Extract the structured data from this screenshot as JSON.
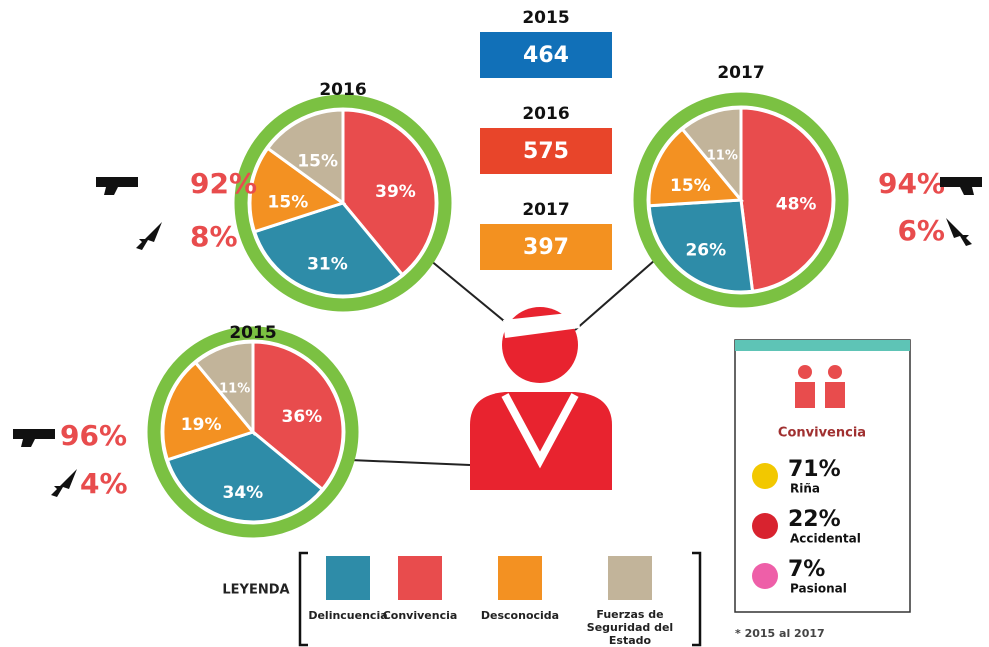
{
  "chart_data": [
    {
      "type": "pie",
      "title": "2016",
      "values": [
        39,
        31,
        15,
        15
      ],
      "value_labels": [
        "39%",
        "31%",
        "15%",
        "15%"
      ],
      "colors": [
        "#e84c4d",
        "#2e8ca8",
        "#f39122",
        "#c2b49a"
      ],
      "weapons": {
        "values": [
          92,
          8
        ],
        "value_labels": [
          "92%",
          "8%"
        ]
      }
    },
    {
      "type": "pie",
      "title": "2017",
      "values": [
        48,
        26,
        15,
        11
      ],
      "value_labels": [
        "48%",
        "26%",
        "15%",
        "11%"
      ],
      "colors": [
        "#e84c4d",
        "#2e8ca8",
        "#f39122",
        "#c2b49a"
      ],
      "weapons": {
        "values": [
          94,
          6
        ],
        "value_labels": [
          "94%",
          "6%"
        ]
      }
    },
    {
      "type": "pie",
      "title": "2015",
      "values": [
        36,
        34,
        19,
        11
      ],
      "value_labels": [
        "36%",
        "34%",
        "19%",
        "11%"
      ],
      "colors": [
        "#e84c4d",
        "#2e8ca8",
        "#f39122",
        "#c2b49a"
      ],
      "weapons": {
        "values": [
          96,
          4
        ],
        "value_labels": [
          "96%",
          "4%"
        ]
      }
    }
  ],
  "totals": [
    {
      "year": "2015",
      "value": 464,
      "color": "#1170b8"
    },
    {
      "year": "2016",
      "value": 575,
      "color": "#e8452a"
    },
    {
      "year": "2017",
      "value": 397,
      "color": "#f39120"
    }
  ],
  "legend": {
    "title": "LEYENDA",
    "items": [
      {
        "name": "Delincuencia",
        "color": "#2e8ca8"
      },
      {
        "name": "Convivencia",
        "color": "#e84c4d"
      },
      {
        "name": "Desconocida",
        "color": "#f39122"
      },
      {
        "name": "Fuerzas de Seguridad del Estado",
        "color": "#c2b49a"
      }
    ]
  },
  "convivencia": {
    "title": "Convivencia",
    "items": [
      {
        "value": 71,
        "value_label": "71%",
        "name": "Riña"
      },
      {
        "value": 22,
        "value_label": "22%",
        "name": "Accidental"
      },
      {
        "value": 7,
        "value_label": "7%",
        "name": "Pasional"
      }
    ]
  },
  "footnote": "* 2015 al 2017"
}
